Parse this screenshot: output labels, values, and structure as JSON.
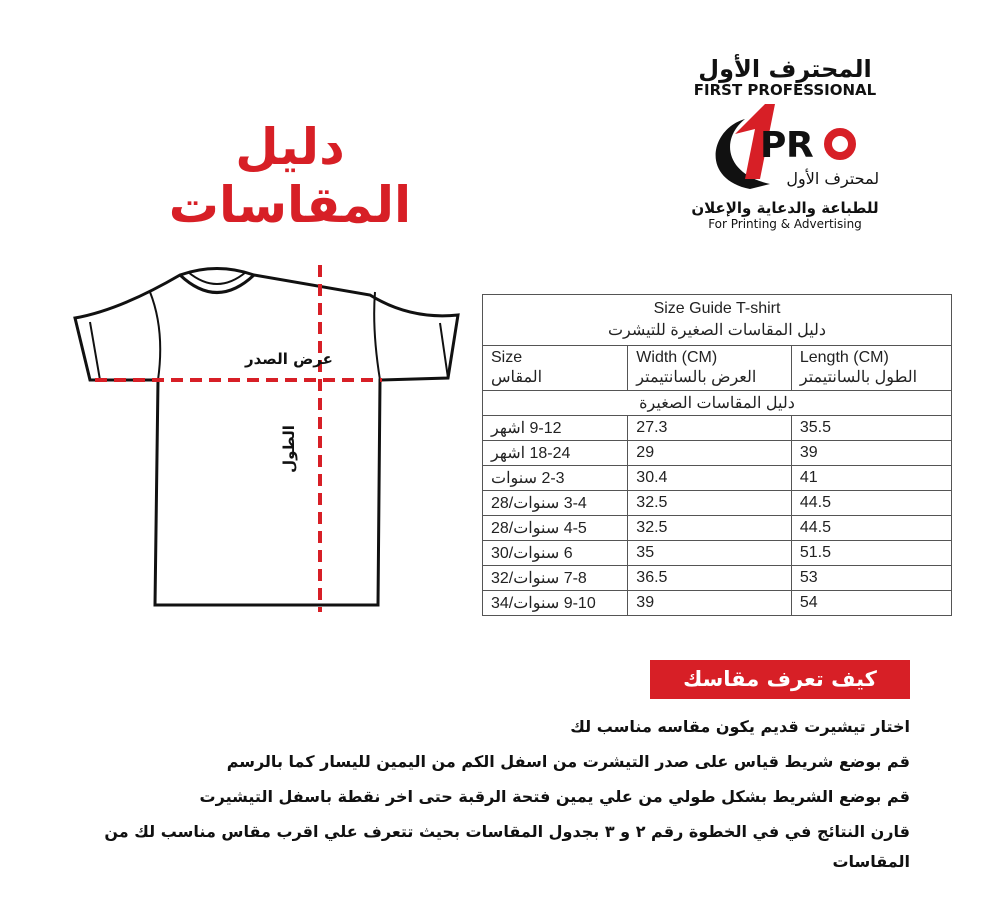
{
  "title": "دليل المقاسات",
  "logo": {
    "arabic_name": "المحترف الأول",
    "english_name": "FIRST PROFESSIONAL",
    "mark": "PRO",
    "arabic_tagline": "للطباعة والدعاية والإعلان",
    "english_tagline": "For Printing & Advertising"
  },
  "diagram": {
    "chest_label": "عرض الصدر",
    "length_label": "الطول",
    "accent_color": "#d71f26"
  },
  "table": {
    "title_en": "Size Guide T-shirt",
    "title_ar": "دليل المقاسات الصغيرة للتيشرت",
    "headers": [
      {
        "en": "Size",
        "ar": "المقاس"
      },
      {
        "en": "Width (CM)",
        "ar": "العرض بالسانتيمتر"
      },
      {
        "en": "Length (CM)",
        "ar": "الطول بالسانتيمتر"
      }
    ],
    "section": "دليل المقاسات الصغيرة",
    "rows": [
      [
        "9-12 اشهر",
        "27.3",
        "35.5"
      ],
      [
        "18-24 اشهر",
        "29",
        "39"
      ],
      [
        "2-3 سنوات",
        "30.4",
        "41"
      ],
      [
        "3-4 سنوات/28",
        "32.5",
        "44.5"
      ],
      [
        "4-5 سنوات/28",
        "32.5",
        "44.5"
      ],
      [
        "6 سنوات/30",
        "35",
        "51.5"
      ],
      [
        "7-8 سنوات/32",
        "36.5",
        "53"
      ],
      [
        "9-10 سنوات/34",
        "39",
        "54"
      ]
    ]
  },
  "howto": {
    "heading": "كيف تعرف مقاسك",
    "steps": [
      "اختار تيشيرت قديم يكون مقاسه مناسب لك",
      "قم بوضع شريط قياس على صدر التيشرت من اسفل الكم من اليمين لليسار كما بالرسم",
      "قم بوضع الشريط بشكل طولي من علي يمين فتحة الرقبة حتى اخر نقطة باسفل التيشيرت",
      "قارن النتائج  في في الخطوة رقم ٢ و ٣ بجدول المقاسات بحيث تتعرف علي اقرب مقاس مناسب لك من المقاسات"
    ]
  }
}
